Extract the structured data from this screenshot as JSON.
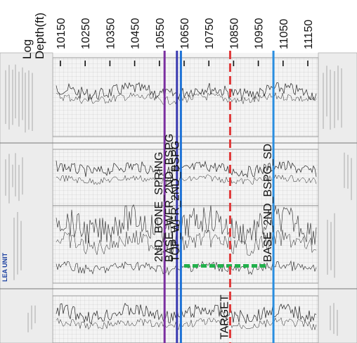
{
  "axis": {
    "title_line1": "Log",
    "title_line2": "Depth(ft)",
    "unit": "ft",
    "min": 10150,
    "max": 11150,
    "ticks": [
      10150,
      10250,
      10350,
      10450,
      10550,
      10650,
      10750,
      10850,
      10950,
      11050,
      11150
    ]
  },
  "formation_tops": [
    {
      "label": "2ND_BONE_SPRING",
      "depth": 10571,
      "color": "#7b2fa0",
      "style": "solid"
    },
    {
      "label": "BASE_WFR_2ND_BSPG",
      "depth": 10621,
      "color": "#3a3ab0",
      "style": "solid"
    },
    {
      "label": "TOP_WFR_2ND_BSPG",
      "depth": 10637,
      "color": "#1f73d6",
      "style": "solid"
    },
    {
      "label": "TARGET",
      "depth": 10836,
      "color": "#e03a3a",
      "style": "dashed"
    },
    {
      "label": "BASE_2ND_BSPG_SD",
      "depth": 11011,
      "color": "#2a8ee0",
      "style": "solid"
    }
  ],
  "header_text": "LEA UNIT",
  "marker_color": "#22b14c"
}
